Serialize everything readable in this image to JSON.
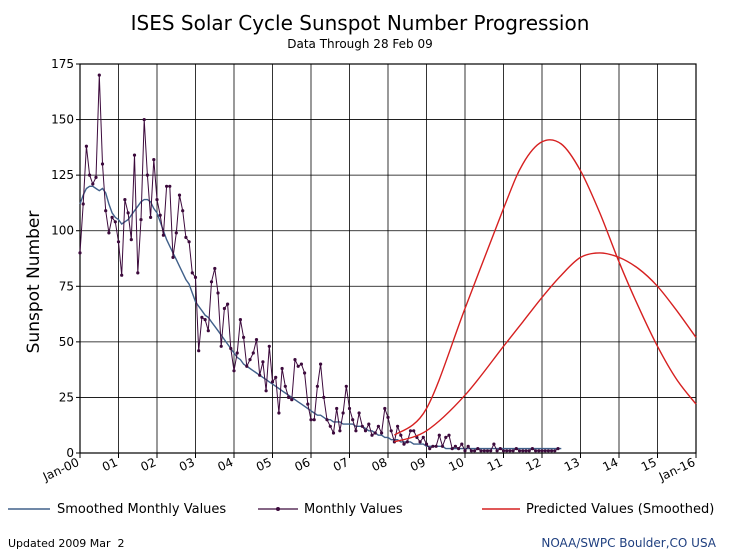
{
  "header": {
    "title": "ISES Solar Cycle Sunspot Number Progression",
    "subtitle": "Data Through 28 Feb 09"
  },
  "footer": {
    "updated": "Updated 2009 Mar  2",
    "credit": "NOAA/SWPC Boulder,CO USA"
  },
  "colors": {
    "monthly": "#3c0a3c",
    "smoothed": "#40608a",
    "predicted": "#d62020",
    "grid": "#000000"
  },
  "chart_data": {
    "type": "line",
    "title": "ISES Solar Cycle Sunspot Number Progression",
    "subtitle": "Data Through 28 Feb 09",
    "ylabel": "Sunspot Number",
    "xlabel": "",
    "ylim": [
      0,
      175
    ],
    "yticks": [
      0,
      25,
      50,
      75,
      100,
      125,
      150,
      175
    ],
    "xlim": [
      "2000-01",
      "2016-01"
    ],
    "xtick_labels": [
      "Jan-00",
      "01",
      "02",
      "03",
      "04",
      "05",
      "06",
      "07",
      "08",
      "09",
      "10",
      "11",
      "12",
      "13",
      "14",
      "15",
      "Jan-16"
    ],
    "grid": true,
    "legend_position": "bottom",
    "legend": [
      "Smoothed Monthly Values",
      "Monthly Values",
      "Predicted Values (Smoothed)"
    ],
    "monthly": {
      "start": "2000-01",
      "values": [
        90,
        112,
        138,
        125,
        121,
        124,
        170,
        130,
        109,
        99,
        106,
        104,
        95,
        80,
        114,
        108,
        96,
        134,
        81,
        105,
        150,
        125,
        106,
        132,
        114,
        107,
        98,
        120,
        120,
        88,
        99,
        116,
        109,
        97,
        95,
        81,
        79,
        46,
        61,
        60,
        55,
        77,
        83,
        72,
        48,
        65,
        67,
        47,
        37,
        45,
        60,
        52,
        39,
        42,
        45,
        51,
        35,
        41,
        28,
        48,
        32,
        34,
        18,
        38,
        30,
        25,
        24,
        42,
        39,
        40,
        36,
        22,
        15,
        15,
        30,
        40,
        25,
        15,
        12,
        9,
        20,
        10,
        18,
        30,
        20,
        15,
        10,
        18,
        12,
        10,
        13,
        8,
        9,
        12,
        9,
        20,
        16,
        10,
        5,
        12,
        8,
        4,
        5,
        10,
        10,
        7,
        5,
        7,
        4,
        2,
        3,
        3,
        8,
        3,
        7,
        8,
        2,
        3,
        2,
        4,
        1,
        3,
        1,
        1,
        2,
        1,
        1,
        1,
        1,
        4,
        1,
        2,
        1,
        1,
        1,
        1,
        2,
        1,
        1,
        1,
        1,
        2,
        1,
        1,
        1,
        1,
        1,
        1,
        1,
        2
      ]
    },
    "smoothed": {
      "start": "2000-01",
      "values": [
        112,
        116,
        119,
        120,
        120,
        119,
        118,
        119,
        117,
        112,
        108,
        106,
        105,
        103,
        104,
        105,
        107,
        109,
        111,
        113,
        114,
        114,
        113,
        110,
        108,
        104,
        100,
        96,
        93,
        90,
        87,
        84,
        81,
        78,
        76,
        72,
        68,
        66,
        64,
        62,
        61,
        59,
        57,
        55,
        53,
        51,
        49,
        47,
        45,
        43,
        42,
        40,
        39,
        38,
        37,
        36,
        35,
        34,
        33,
        32,
        31,
        30,
        29,
        28,
        27,
        26,
        25,
        24,
        23,
        22,
        21,
        20,
        19,
        18,
        17,
        17,
        16,
        15,
        15,
        14,
        14,
        14,
        13,
        13,
        13,
        13,
        12,
        12,
        12,
        11,
        10,
        10,
        9,
        8,
        8,
        7,
        7,
        6,
        6,
        6,
        5,
        5,
        5,
        5,
        4,
        4,
        4,
        4,
        3,
        3,
        3,
        3,
        3,
        3,
        2,
        2,
        2,
        2,
        2,
        2,
        2,
        2,
        2,
        2,
        2,
        2,
        2,
        2,
        2,
        2,
        2,
        2,
        2,
        2,
        2,
        2,
        2,
        2,
        2,
        2,
        2,
        2,
        2,
        2,
        2,
        2,
        2,
        2,
        2,
        2,
        2
      ]
    },
    "series": [
      {
        "name": "Predicted Values (Smoothed)",
        "x": [
          "2008-03",
          "2009-01",
          "2010-01",
          "2011-01",
          "2011-07",
          "2012-01",
          "2012-07",
          "2013-01",
          "2013-07",
          "2014-01",
          "2014-07",
          "2015-01",
          "2015-07",
          "2016-01"
        ],
        "values": [
          8,
          20,
          65,
          110,
          130,
          140,
          139,
          127,
          108,
          86,
          66,
          48,
          33,
          22
        ]
      },
      {
        "name": "Predicted Values (Smoothed)",
        "x": [
          "2008-03",
          "2009-01",
          "2010-01",
          "2011-01",
          "2011-07",
          "2012-01",
          "2012-07",
          "2013-01",
          "2013-07",
          "2014-01",
          "2014-07",
          "2015-01",
          "2015-07",
          "2016-01"
        ],
        "values": [
          5,
          10,
          26,
          48,
          59,
          70,
          80,
          88,
          90,
          88,
          83,
          75,
          64,
          52
        ]
      }
    ]
  }
}
